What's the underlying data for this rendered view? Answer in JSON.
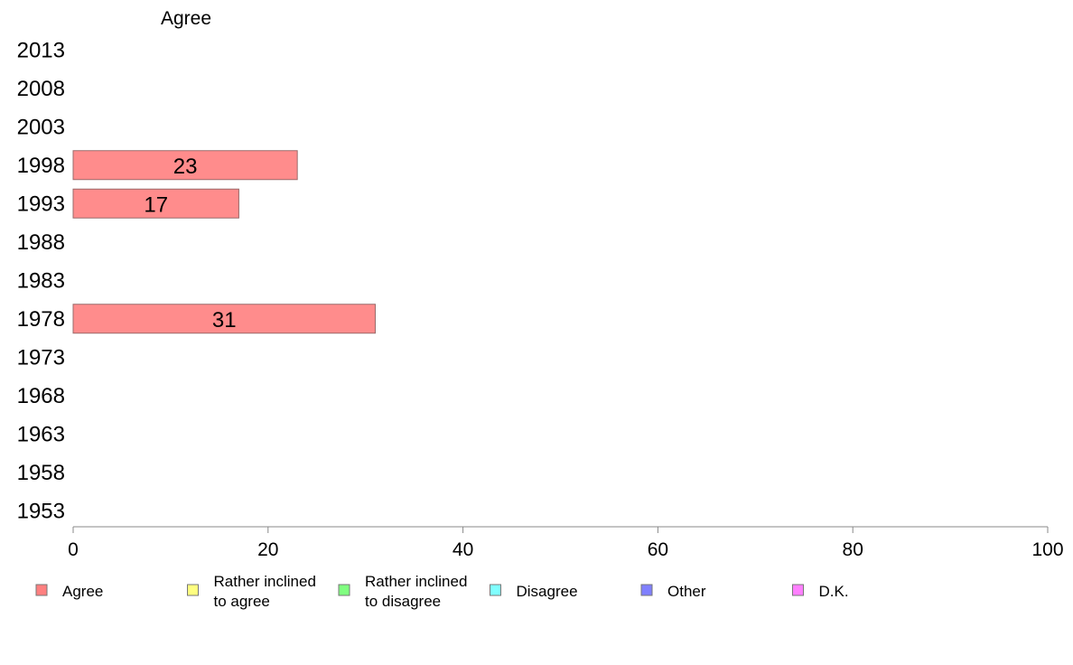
{
  "chart_data": {
    "type": "bar",
    "orientation": "horizontal",
    "title": "Agree",
    "categories": [
      "2013",
      "2008",
      "2003",
      "1998",
      "1993",
      "1988",
      "1983",
      "1978",
      "1973",
      "1968",
      "1963",
      "1958",
      "1953"
    ],
    "series": [
      {
        "name": "Agree",
        "values": [
          null,
          null,
          null,
          23,
          17,
          null,
          null,
          31,
          null,
          null,
          null,
          null,
          null
        ]
      }
    ],
    "data_labels": [
      "",
      "",
      "",
      "23",
      "17",
      "",
      "",
      "31",
      "",
      "",
      "",
      "",
      ""
    ],
    "xlim": [
      0,
      100
    ],
    "xticks": [
      "0",
      "20",
      "40",
      "60",
      "80",
      "100"
    ],
    "xlabel": "",
    "ylabel": "",
    "grid": false,
    "legend": {
      "placement": "bottom",
      "entries": [
        {
          "label": "Agree",
          "color": "#ff8080"
        },
        {
          "label": "Rather inclined to agree",
          "color": "#ffff80"
        },
        {
          "label": "Rather inclined to disagree",
          "color": "#80ff80"
        },
        {
          "label": "Disagree",
          "color": "#80ffff"
        },
        {
          "label": "Other",
          "color": "#8080ff"
        },
        {
          "label": "D.K.",
          "color": "#ff80ff"
        }
      ]
    },
    "colors": {
      "bar": "#ff8c8c",
      "bar_stroke": "#9a6a6a",
      "axis": "#888888"
    }
  }
}
